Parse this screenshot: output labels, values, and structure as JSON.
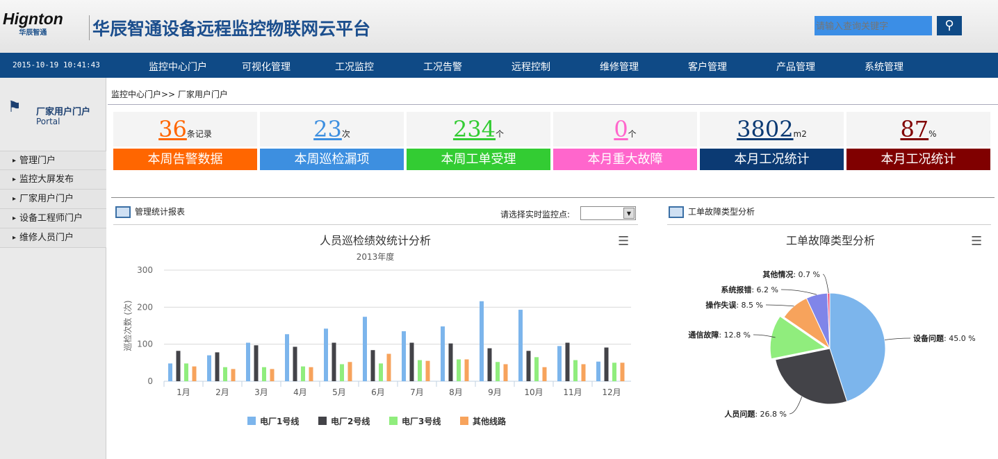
{
  "header": {
    "logo": "Hignton",
    "logo_sub": "华辰智通",
    "title": "华辰智通设备远程监控物联网云平台",
    "search_placeholder": "请输入查询关键字",
    "search_icon": "magnifier-icon"
  },
  "nav": {
    "datetime": "2015-10-19 10:41:43",
    "items": [
      "监控中心门户",
      "可视化管理",
      "工况监控",
      "工况告警",
      "远程控制",
      "维修管理",
      "客户管理",
      "产品管理",
      "系统管理"
    ]
  },
  "sidebar": {
    "title": "厂家用户门户",
    "subtitle": "Portal",
    "items": [
      "管理门户",
      "监控大屏发布",
      "厂家用户门户",
      "设备工程师门户",
      "维修人员门户"
    ]
  },
  "breadcrumb": "监控中心门户>> 厂家用户门户",
  "stats": [
    {
      "value": "36",
      "unit": "条记录",
      "label": "本周告警数据",
      "color": "#ff6600"
    },
    {
      "value": "23",
      "unit": "次",
      "label": "本周巡检漏项",
      "color": "#3d8fe0"
    },
    {
      "value": "234",
      "unit": "个",
      "label": "本周工单受理",
      "color": "#33cc33"
    },
    {
      "value": "0",
      "unit": "个",
      "label": "本月重大故障",
      "color": "#ff66cc"
    },
    {
      "value": "3802",
      "unit": "m2",
      "label": "本月工况统计",
      "color": "#0b3a73"
    },
    {
      "value": "87",
      "unit": "%",
      "label": "本月工况统计",
      "color": "#800000"
    }
  ],
  "panel_left": {
    "title": "管理统计报表",
    "select_label": "请选择实时监控点:"
  },
  "panel_right": {
    "title": "工单故障类型分析"
  },
  "chart_data": [
    {
      "type": "bar",
      "title": "人员巡检绩效统计分析",
      "subtitle": "2013年度",
      "ylabel": "巡检次数 (次)",
      "ylim": [
        0,
        300
      ],
      "yticks": [
        0,
        100,
        200,
        300
      ],
      "grid": true,
      "legend": "bottom",
      "categories": [
        "1月",
        "2月",
        "3月",
        "4月",
        "5月",
        "6月",
        "7月",
        "8月",
        "9月",
        "10月",
        "11月",
        "12月"
      ],
      "series": [
        {
          "name": "电厂1号线",
          "color": "#7cb5ec",
          "values": [
            48,
            70,
            104,
            127,
            142,
            174,
            135,
            148,
            216,
            193,
            95,
            53
          ]
        },
        {
          "name": "电厂2号线",
          "color": "#434348",
          "values": [
            82,
            78,
            97,
            93,
            104,
            84,
            104,
            102,
            89,
            82,
            104,
            91
          ]
        },
        {
          "name": "电厂3号线",
          "color": "#90ed7d",
          "values": [
            48,
            38,
            38,
            40,
            46,
            48,
            57,
            59,
            52,
            65,
            57,
            50
          ]
        },
        {
          "name": "其他线路",
          "color": "#f7a35c",
          "values": [
            40,
            33,
            33,
            38,
            52,
            74,
            55,
            59,
            46,
            38,
            46,
            50
          ]
        }
      ]
    },
    {
      "type": "pie",
      "title": "工单故障类型分析",
      "slices": [
        {
          "name": "设备问题",
          "value": 45.0,
          "label": "45.0 %",
          "color": "#7cb5ec"
        },
        {
          "name": "人员问题",
          "value": 26.8,
          "label": "26.8 %",
          "color": "#434348"
        },
        {
          "name": "通信故障",
          "value": 12.8,
          "label": "12.8 %",
          "color": "#90ed7d"
        },
        {
          "name": "操作失误",
          "value": 8.5,
          "label": "8.5 %",
          "color": "#f7a35c"
        },
        {
          "name": "系统报错",
          "value": 6.2,
          "label": "6.2 %",
          "color": "#8085e9"
        },
        {
          "name": "其他情况",
          "value": 0.7,
          "label": "0.7 %",
          "color": "#f15c80"
        }
      ]
    }
  ]
}
